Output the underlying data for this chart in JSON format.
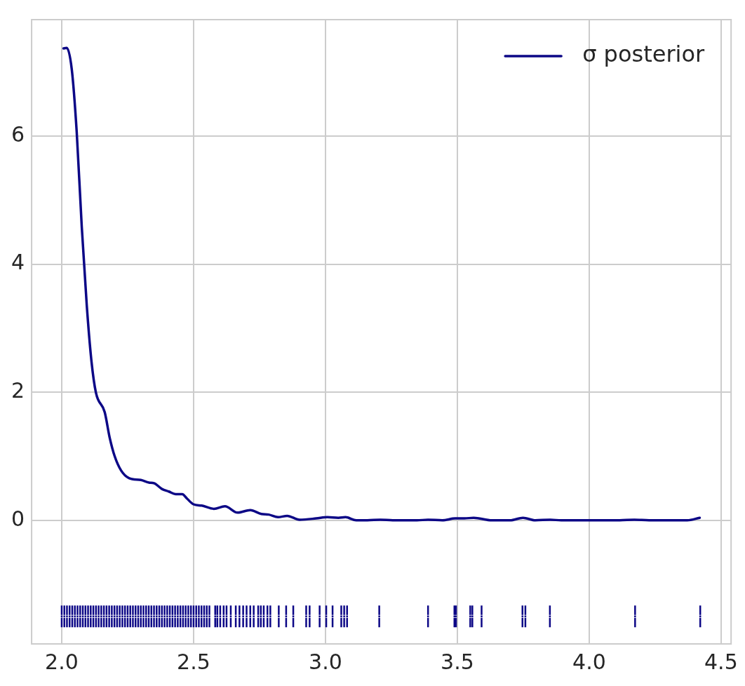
{
  "chart_data": {
    "type": "line",
    "xlim": [
      1.886,
      4.538
    ],
    "ylim": [
      -1.93,
      7.82
    ],
    "xticks": [
      {
        "value": 2,
        "label": "2.0"
      },
      {
        "value": 2.5,
        "label": "2.5"
      },
      {
        "value": 3,
        "label": "3.0"
      },
      {
        "value": 3.5,
        "label": "3.5"
      },
      {
        "value": 4,
        "label": "4.0"
      },
      {
        "value": 4.5,
        "label": "4.5"
      }
    ],
    "yticks": [
      0,
      2,
      4,
      6
    ],
    "grid": true,
    "legend": "top right",
    "series": [
      {
        "name": "σ posterior",
        "type": "line",
        "color": "#0c0786",
        "line_style": "solid",
        "x": [
          2.007,
          2.019,
          2.038,
          2.057,
          2.076,
          2.095,
          2.113,
          2.13,
          2.163,
          2.182,
          2.201,
          2.225,
          2.255,
          2.3,
          2.331,
          2.35,
          2.38,
          2.406,
          2.432,
          2.457,
          2.475,
          2.5,
          2.531,
          2.577,
          2.619,
          2.667,
          2.715,
          2.757,
          2.785,
          2.82,
          2.855,
          2.902,
          2.965,
          3.007,
          3.049,
          3.076,
          3.117,
          3.159,
          3.208,
          3.255,
          3.347,
          3.389,
          3.443,
          3.492,
          3.527,
          3.562,
          3.631,
          3.7,
          3.749,
          3.796,
          3.852,
          3.894,
          4.116,
          4.171,
          4.227,
          4.372,
          4.419
        ],
        "values": [
          7.37,
          7.38,
          7.05,
          6.06,
          4.59,
          3.36,
          2.48,
          1.99,
          1.69,
          1.29,
          1.0,
          0.78,
          0.66,
          0.63,
          0.59,
          0.58,
          0.49,
          0.45,
          0.41,
          0.41,
          0.34,
          0.25,
          0.23,
          0.18,
          0.22,
          0.12,
          0.16,
          0.1,
          0.09,
          0.05,
          0.07,
          0.01,
          0.03,
          0.05,
          0.04,
          0.05,
          0.0,
          0.0,
          0.01,
          0.0,
          0.0,
          0.01,
          0.0,
          0.03,
          0.03,
          0.04,
          0.0,
          0.0,
          0.04,
          0.0,
          0.01,
          0.0,
          0.0,
          0.01,
          0.0,
          0.0,
          0.04
        ]
      },
      {
        "type": "scatter",
        "color": "#0c0786",
        "marker": "square",
        "errors": [
          0.17,
          0.17,
          0.17,
          0.17,
          0.17,
          0.17,
          0.17,
          0.17,
          0.17,
          0.17,
          0.17,
          0.17,
          0.17,
          0.17,
          0.17,
          0.17,
          0.17,
          0.17,
          0.17,
          0.17,
          0.17,
          0.17,
          0.17,
          0.17,
          0.17,
          0.17,
          0.17,
          0.17,
          0.17,
          0.17,
          0.17,
          0.17,
          0.17,
          0.17,
          0.17,
          0.17,
          0.17,
          0.17,
          0.17,
          0.17,
          0.17,
          0.17,
          0.17,
          0.17,
          0.17,
          0.17,
          0.17,
          0.17,
          0.17,
          0.17,
          0.17,
          0.17,
          0.17,
          0.17,
          0.17,
          0.17,
          0.17,
          0.17,
          0.17,
          0.17,
          0.17,
          0.17,
          0.17,
          0.17,
          0.17,
          0.17,
          0.17,
          0.17,
          0.17,
          0.17,
          0.17,
          0.17,
          0.17,
          0.17,
          0.17,
          0.17,
          0.17,
          0.17,
          0.17,
          0.17,
          0.17,
          0.17,
          0.17,
          0.17,
          0.17,
          0.17,
          0.17,
          0.17,
          0.17,
          0.17,
          0.17,
          0.17,
          0.17,
          0.17,
          0.17,
          0.17,
          0.17
        ],
        "x": [
          2.0,
          2.01,
          2.02,
          2.03,
          2.04,
          2.05,
          2.06,
          2.07,
          2.08,
          2.09,
          2.1,
          2.11,
          2.12,
          2.13,
          2.14,
          2.15,
          2.16,
          2.17,
          2.18,
          2.19,
          2.2,
          2.21,
          2.22,
          2.23,
          2.24,
          2.25,
          2.26,
          2.27,
          2.28,
          2.29,
          2.3,
          2.31,
          2.32,
          2.33,
          2.34,
          2.35,
          2.36,
          2.37,
          2.38,
          2.39,
          2.4,
          2.41,
          2.42,
          2.43,
          2.44,
          2.45,
          2.46,
          2.47,
          2.48,
          2.49,
          2.5,
          2.51,
          2.52,
          2.53,
          2.54,
          2.55,
          2.56,
          2.582,
          2.59,
          2.601,
          2.614,
          2.625,
          2.641,
          2.66,
          2.674,
          2.688,
          2.701,
          2.715,
          2.728,
          2.745,
          2.755,
          2.766,
          2.78,
          2.791,
          2.823,
          2.851,
          2.878,
          2.927,
          2.94,
          2.978,
          3.003,
          3.027,
          3.06,
          3.071,
          3.082,
          3.204,
          3.389,
          3.489,
          3.495,
          3.549,
          3.557,
          3.592,
          3.747,
          3.758,
          3.851,
          4.174,
          4.421
        ],
        "values": [
          -1.5,
          -1.5,
          -1.5,
          -1.5,
          -1.5,
          -1.5,
          -1.5,
          -1.5,
          -1.5,
          -1.5,
          -1.5,
          -1.5,
          -1.5,
          -1.5,
          -1.5,
          -1.5,
          -1.5,
          -1.5,
          -1.5,
          -1.5,
          -1.5,
          -1.5,
          -1.5,
          -1.5,
          -1.5,
          -1.5,
          -1.5,
          -1.5,
          -1.5,
          -1.5,
          -1.5,
          -1.5,
          -1.5,
          -1.5,
          -1.5,
          -1.5,
          -1.5,
          -1.5,
          -1.5,
          -1.5,
          -1.5,
          -1.5,
          -1.5,
          -1.5,
          -1.5,
          -1.5,
          -1.5,
          -1.5,
          -1.5,
          -1.5,
          -1.5,
          -1.5,
          -1.5,
          -1.5,
          -1.5,
          -1.5,
          -1.5,
          -1.5,
          -1.5,
          -1.5,
          -1.5,
          -1.5,
          -1.5,
          -1.5,
          -1.5,
          -1.5,
          -1.5,
          -1.5,
          -1.5,
          -1.5,
          -1.5,
          -1.5,
          -1.5,
          -1.5,
          -1.5,
          -1.5,
          -1.5,
          -1.5,
          -1.5,
          -1.5,
          -1.5,
          -1.5,
          -1.5,
          -1.5,
          -1.5,
          -1.5,
          -1.5,
          -1.5,
          -1.5,
          -1.5,
          -1.5,
          -1.5,
          -1.5,
          -1.5,
          -1.5,
          -1.5,
          -1.5
        ]
      }
    ]
  }
}
